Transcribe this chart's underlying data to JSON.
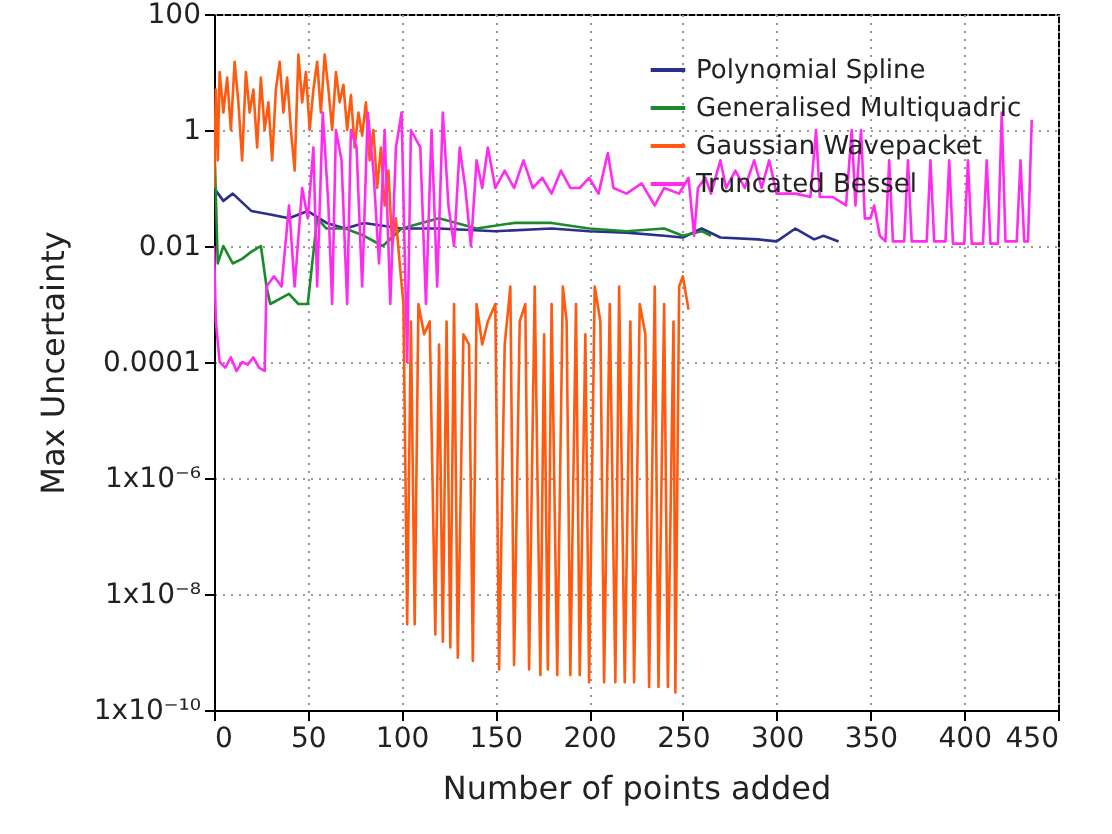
{
  "chart_data": {
    "type": "line",
    "xlabel": "Number of points added",
    "ylabel": "Max Uncertainty",
    "log": "y",
    "grid": true,
    "legend": "top right",
    "line_style": "solid",
    "xlim": [
      0,
      450
    ],
    "xticks": [
      0,
      50,
      100,
      150,
      200,
      250,
      300,
      350,
      400,
      450
    ],
    "ylim": [
      1e-10,
      100
    ],
    "yticks": [
      {
        "value": 1e-10,
        "label": "1x10⁻¹⁰"
      },
      {
        "value": 1e-08,
        "label": "1x10⁻⁸"
      },
      {
        "value": 1e-06,
        "label": "1x10⁻⁶"
      },
      0.0001,
      0.01,
      1,
      100
    ],
    "series": [
      {
        "name": "Polynomial Spline",
        "color": "#2b2f8c",
        "x": [
          0,
          5,
          10,
          20,
          30,
          40,
          50,
          60,
          70,
          80,
          100,
          120,
          150,
          180,
          200,
          220,
          240,
          250,
          260,
          270,
          290,
          300,
          310,
          320,
          325,
          333
        ],
        "values": [
          0.1,
          0.06,
          0.08,
          0.04,
          0.035,
          0.03,
          0.04,
          0.025,
          0.02,
          0.025,
          0.02,
          0.02,
          0.018,
          0.02,
          0.018,
          0.017,
          0.015,
          0.014,
          0.02,
          0.014,
          0.013,
          0.012,
          0.02,
          0.013,
          0.015,
          0.012
        ]
      },
      {
        "name": "Generalised Multiquadric",
        "color": "#1a8a2a",
        "x": [
          0,
          2,
          5,
          10,
          15,
          20,
          25,
          28,
          30,
          40,
          45,
          50,
          55,
          60,
          70,
          80,
          90,
          100,
          120,
          140,
          160,
          180,
          200,
          220,
          240,
          250,
          260,
          265
        ],
        "values": [
          1,
          0.005,
          0.01,
          0.005,
          0.006,
          0.008,
          0.01,
          0.002,
          0.001,
          0.0015,
          0.001,
          0.001,
          0.03,
          0.02,
          0.02,
          0.015,
          0.01,
          0.02,
          0.03,
          0.02,
          0.025,
          0.025,
          0.02,
          0.018,
          0.02,
          0.015,
          0.018,
          0.015
        ]
      },
      {
        "name": "Gaussian Wavepacket",
        "color": "#ff5a10",
        "x": [
          0,
          1,
          2,
          3,
          5,
          7,
          9,
          11,
          13,
          15,
          17,
          19,
          21,
          23,
          25,
          27,
          29,
          31,
          33,
          35,
          37,
          39,
          41,
          43,
          45,
          47,
          49,
          51,
          53,
          55,
          57,
          59,
          61,
          63,
          65,
          67,
          69,
          71,
          73,
          75,
          77,
          79,
          81,
          83,
          85,
          87,
          89,
          91,
          93,
          95,
          97,
          99,
          101,
          103,
          105,
          107,
          109,
          112,
          115,
          118,
          120,
          122,
          124,
          126,
          128,
          130,
          133,
          136,
          138,
          140,
          143,
          146,
          150,
          152,
          155,
          158,
          160,
          163,
          166,
          168,
          171,
          174,
          176,
          178,
          180,
          183,
          186,
          188,
          190,
          193,
          195,
          198,
          200,
          203,
          206,
          208,
          211,
          214,
          216,
          219,
          222,
          224,
          227,
          230,
          232,
          235,
          237,
          240,
          242,
          245,
          246,
          248,
          250,
          253
        ],
        "values": [
          0.1,
          5,
          0.3,
          10,
          2,
          8,
          1,
          15,
          3,
          0.3,
          10,
          2,
          5,
          0.5,
          8,
          1,
          3,
          0.3,
          5,
          15,
          2,
          8,
          1,
          0.2,
          20,
          3,
          10,
          1,
          5,
          15,
          2,
          20,
          5,
          1,
          10,
          3,
          6,
          1,
          4,
          0.5,
          2,
          0.8,
          3,
          0.3,
          1,
          0.1,
          0.5,
          0.05,
          0.2,
          0.01,
          0.03,
          0.005,
          0.001,
          3e-09,
          0.0005,
          3e-09,
          0.001,
          0.0003,
          0.0005,
          2e-09,
          0.0002,
          1.5e-09,
          0.0005,
          1.2e-09,
          0.001,
          8e-10,
          0.0003,
          0.0002,
          7e-10,
          0.001,
          0.0002,
          0.0005,
          0.001,
          5e-10,
          0.0002,
          0.002,
          6e-10,
          0.0005,
          0.001,
          5e-10,
          0.002,
          4e-10,
          0.0003,
          5e-10,
          0.001,
          4e-10,
          0.002,
          0.0005,
          4e-10,
          0.001,
          4e-10,
          0.0003,
          3e-10,
          0.002,
          0.0005,
          3e-10,
          0.001,
          3e-10,
          0.002,
          3e-10,
          0.0005,
          3e-10,
          0.001,
          0.0003,
          2.5e-10,
          0.002,
          2.5e-10,
          0.001,
          2.5e-10,
          0.0005,
          2e-10,
          0.002,
          0.003,
          0.0008
        ]
      },
      {
        "name": "Truncated Bessel",
        "color": "#ff2cf0",
        "x": [
          0,
          1,
          3,
          6,
          9,
          12,
          15,
          18,
          21,
          24,
          27,
          28,
          32,
          36,
          40,
          43,
          47,
          50,
          53,
          55,
          58,
          61,
          63,
          65,
          68,
          71,
          73,
          76,
          79,
          82,
          85,
          88,
          91,
          94,
          97,
          100,
          103,
          105,
          110,
          113,
          116,
          119,
          122,
          125,
          128,
          131,
          134,
          137,
          140,
          143,
          146,
          150,
          155,
          160,
          165,
          170,
          175,
          180,
          185,
          190,
          195,
          200,
          205,
          210,
          213,
          220,
          228,
          235,
          240,
          248,
          253,
          256,
          258,
          262,
          265,
          270,
          273,
          278,
          283,
          288,
          292,
          296,
          300,
          310,
          318,
          321,
          323,
          330,
          337,
          340,
          342,
          345,
          347,
          350,
          352,
          355,
          358,
          360,
          362,
          368,
          370,
          372,
          380,
          382,
          384,
          390,
          392,
          394,
          400,
          402,
          404,
          410,
          412,
          414,
          418,
          420,
          422,
          428,
          430,
          432,
          434,
          436
        ],
        "values": [
          0.01,
          0.0005,
          0.0001,
          8e-05,
          0.00012,
          7e-05,
          0.0001,
          9e-05,
          0.00012,
          8e-05,
          7e-05,
          0.002,
          0.003,
          0.002,
          0.05,
          0.002,
          0.1,
          0.03,
          0.5,
          0.002,
          2,
          0.05,
          0.001,
          1,
          0.3,
          0.001,
          1,
          0.5,
          0.002,
          2,
          0.2,
          0.005,
          1,
          0.001,
          0.5,
          2,
          0.0001,
          1,
          0.5,
          0.001,
          1,
          0.002,
          2,
          0.05,
          0.01,
          0.5,
          0.1,
          0.01,
          0.3,
          0.1,
          0.5,
          0.1,
          0.2,
          0.1,
          0.3,
          0.1,
          0.15,
          0.08,
          0.2,
          0.1,
          0.1,
          0.15,
          0.08,
          0.4,
          0.1,
          0.08,
          0.12,
          0.05,
          0.1,
          0.08,
          0.15,
          0.015,
          0.1,
          0.15,
          0.08,
          0.3,
          0.1,
          0.2,
          0.1,
          0.3,
          0.1,
          0.3,
          0.08,
          0.08,
          0.07,
          1,
          0.07,
          0.07,
          0.05,
          1,
          0.05,
          1,
          0.03,
          0.03,
          0.05,
          0.015,
          0.012,
          0.3,
          0.012,
          0.012,
          0.3,
          0.012,
          0.012,
          0.3,
          0.012,
          0.012,
          0.3,
          0.011,
          0.011,
          0.3,
          0.011,
          0.011,
          0.3,
          0.011,
          0.011,
          2,
          0.012,
          0.012,
          0.3,
          0.012,
          0.012,
          1.5
        ]
      }
    ]
  }
}
